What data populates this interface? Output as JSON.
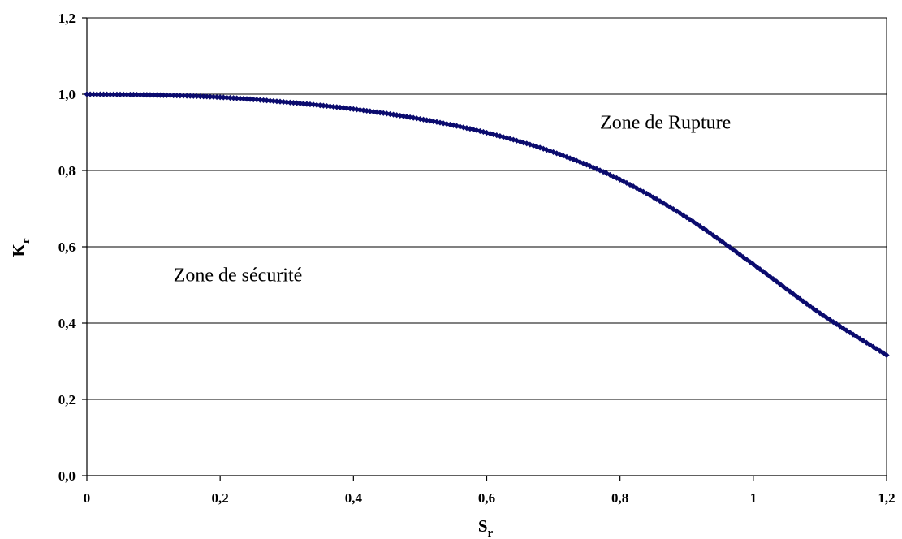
{
  "chart_data": {
    "type": "line",
    "xlabel": {
      "main": "S",
      "sub": "r"
    },
    "ylabel": {
      "main": "K",
      "sub": "r"
    },
    "xlim": [
      0,
      1.2
    ],
    "ylim": [
      0,
      1.2
    ],
    "x_ticks": [
      "0",
      "0,2",
      "0,4",
      "0,6",
      "0,8",
      "1",
      "1,2"
    ],
    "y_ticks": [
      "0,0",
      "0,2",
      "0,4",
      "0,6",
      "0,8",
      "1,0",
      "1,2"
    ],
    "grid": "horizontal",
    "series": [
      {
        "color": "#0b0b6e",
        "marker": "diamond",
        "x": [
          0,
          0.1,
          0.2,
          0.3,
          0.4,
          0.5,
          0.6,
          0.7,
          0.8,
          0.9,
          1.0,
          1.1,
          1.2
        ],
        "y": [
          1.0,
          0.998,
          0.992,
          0.979,
          0.961,
          0.935,
          0.899,
          0.848,
          0.776,
          0.677,
          0.554,
          0.426,
          0.316
        ]
      }
    ],
    "annotations": [
      {
        "text": "Zone de Rupture",
        "x": 0.77,
        "y": 0.91
      },
      {
        "text": "Zone de sécurité",
        "x": 0.13,
        "y": 0.51
      }
    ]
  }
}
